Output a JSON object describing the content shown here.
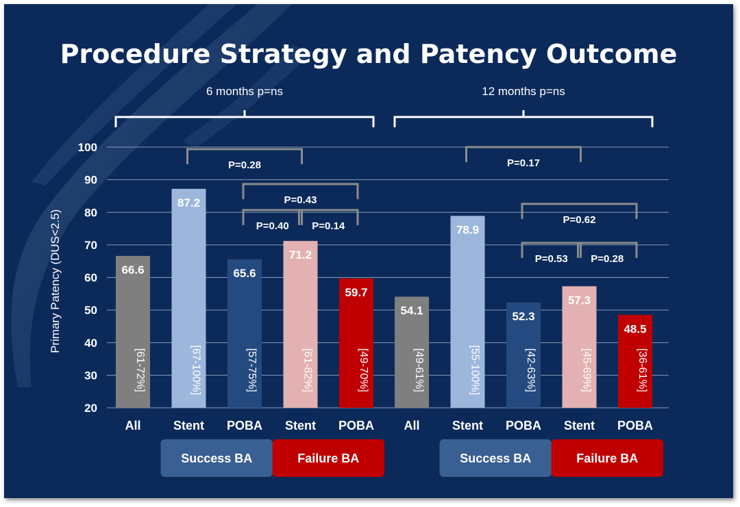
{
  "title": "Procedure Strategy and Patency Outcome",
  "colors": {
    "background": "#0b2a5a",
    "all": "#7f7f7f",
    "stent_success": "#9db7dc",
    "poba_success": "#254a7f",
    "stent_failure": "#e3b1b1",
    "poba_failure": "#c00000",
    "success_box": "#3a5f92",
    "failure_box": "#c00000"
  },
  "chart_data": {
    "type": "bar",
    "ylabel": "Primary Patency (DUS<2.5)",
    "ylim": [
      20,
      100
    ],
    "yticks": [
      20,
      30,
      40,
      50,
      60,
      70,
      80,
      90,
      100
    ],
    "grid": true,
    "groups": [
      {
        "label": "6 months p=ns",
        "bars": [
          {
            "category": "All",
            "value": 66.6,
            "ci": "[61-72%]",
            "color_key": "all"
          },
          {
            "category": "Stent",
            "value": 87.2,
            "ci": "[67-100%]",
            "color_key": "stent_success"
          },
          {
            "category": "POBA",
            "value": 65.6,
            "ci": "[57-75%]",
            "color_key": "poba_success"
          },
          {
            "category": "Stent",
            "value": 71.2,
            "ci": "[61-82%]",
            "color_key": "stent_failure"
          },
          {
            "category": "POBA",
            "value": 59.7,
            "ci": "[49-70%]",
            "color_key": "poba_failure"
          }
        ],
        "comparisons": [
          {
            "label": "P=0.28",
            "from": 1,
            "to": 3
          },
          {
            "label": "P=0.43",
            "from": 2,
            "to": 4
          },
          {
            "label": "P=0.40",
            "from": 2,
            "to": 3
          },
          {
            "label": "P=0.14",
            "from": 3,
            "to": 4
          }
        ],
        "subgroups": [
          {
            "label": "Success BA",
            "from": 1,
            "to": 2,
            "color_key": "success_box"
          },
          {
            "label": "Failure  BA",
            "from": 3,
            "to": 4,
            "color_key": "failure_box"
          }
        ]
      },
      {
        "label": "12 months p=ns",
        "bars": [
          {
            "category": "All",
            "value": 54.1,
            "ci": "[49-61%]",
            "color_key": "all"
          },
          {
            "category": "Stent",
            "value": 78.9,
            "ci": "[55-100%]",
            "color_key": "stent_success"
          },
          {
            "category": "POBA",
            "value": 52.3,
            "ci": "[42-63%]",
            "color_key": "poba_success"
          },
          {
            "category": "Stent",
            "value": 57.3,
            "ci": "[45-69%]",
            "color_key": "stent_failure"
          },
          {
            "category": "POBA",
            "value": 48.5,
            "ci": "[36-61%]",
            "color_key": "poba_failure"
          }
        ],
        "comparisons": [
          {
            "label": "P=0.17",
            "from": 1,
            "to": 3
          },
          {
            "label": "P=0.62",
            "from": 2,
            "to": 4
          },
          {
            "label": "P=0.53",
            "from": 2,
            "to": 3
          },
          {
            "label": "P=0.28",
            "from": 3,
            "to": 4
          }
        ],
        "subgroups": [
          {
            "label": "Success BA",
            "from": 1,
            "to": 2,
            "color_key": "success_box"
          },
          {
            "label": "Failure  BA",
            "from": 3,
            "to": 4,
            "color_key": "failure_box"
          }
        ]
      }
    ]
  }
}
